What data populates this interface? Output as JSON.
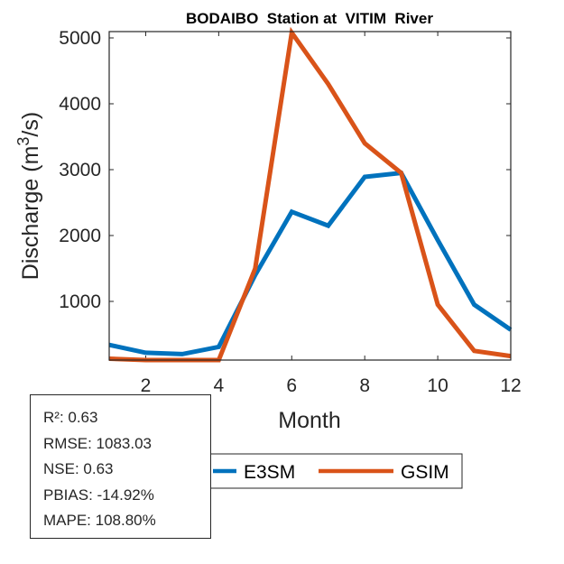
{
  "chart_data": {
    "type": "line",
    "title": "BODAIBO  Station at  VITIM  River",
    "xlabel": "Month",
    "ylabel": "Discharge (m3/s)",
    "ylabel_parts": {
      "base": "Discharge (m",
      "sup": "3",
      "tail": "/s)"
    },
    "xlim": [
      1,
      12
    ],
    "ylim": [
      110,
      5100
    ],
    "xticks": [
      2,
      4,
      6,
      8,
      10,
      12
    ],
    "yticks": [
      1000,
      2000,
      3000,
      4000,
      5000
    ],
    "x": [
      1,
      2,
      3,
      4,
      5,
      6,
      7,
      8,
      9,
      10,
      11,
      12
    ],
    "grid": false,
    "legend_placement": "bottom-center",
    "series": [
      {
        "name": "E3SM",
        "color": "#0072BD",
        "values": [
          340,
          220,
          200,
          310,
          1400,
          2360,
          2150,
          2890,
          2950,
          1930,
          950,
          570
        ]
      },
      {
        "name": "GSIM",
        "color": "#D95319",
        "values": [
          130,
          90,
          80,
          100,
          1500,
          5080,
          4300,
          3400,
          2950,
          950,
          250,
          170
        ]
      }
    ]
  },
  "stats": [
    "R²: 0.63",
    "RMSE: 1083.03",
    "NSE: 0.63",
    "PBIAS: -14.92%",
    "MAPE: 108.80%"
  ]
}
